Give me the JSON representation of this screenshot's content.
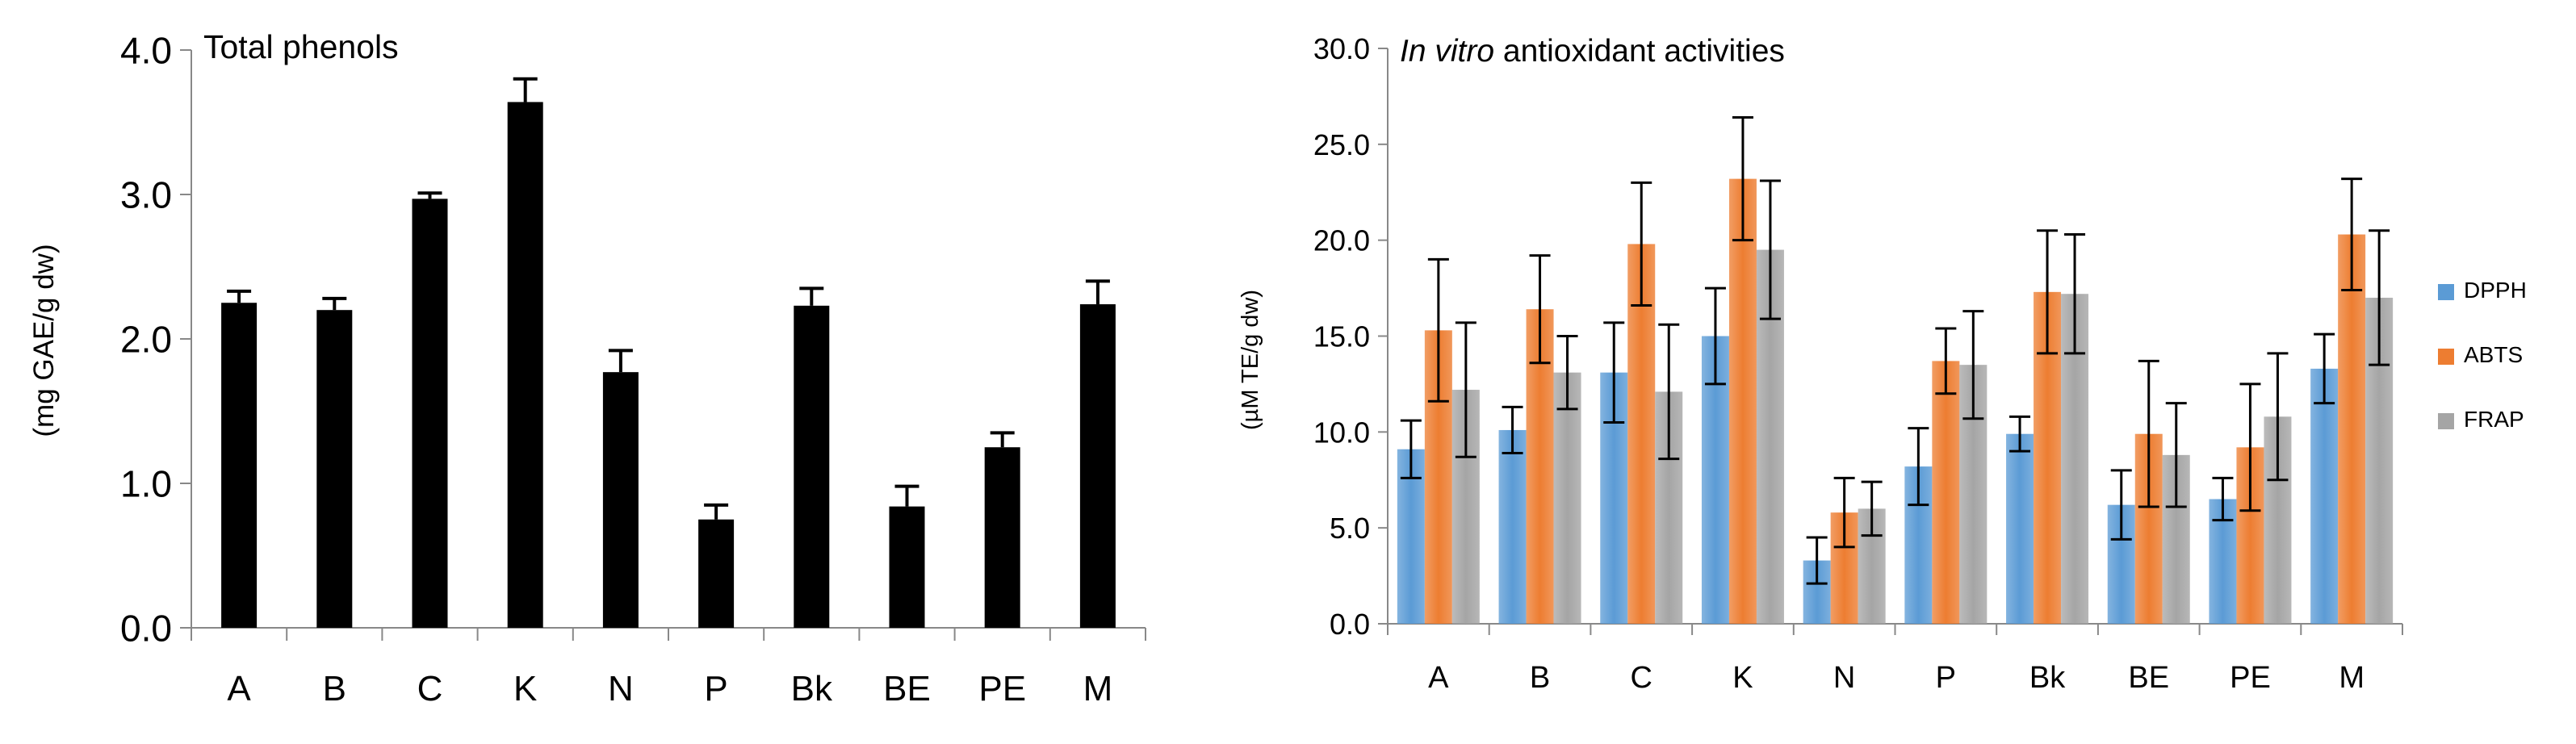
{
  "chart_data": [
    {
      "type": "bar",
      "title": "Total phenols",
      "xlabel": "",
      "ylabel": "(mg GAE/g dw)",
      "ylim": [
        0,
        4
      ],
      "yticks": [
        "0.0",
        "1.0",
        "2.0",
        "3.0",
        "4.0"
      ],
      "categories": [
        "A",
        "B",
        "C",
        "K",
        "N",
        "P",
        "Bk",
        "BE",
        "PE",
        "M"
      ],
      "series": [
        {
          "name": "Total phenols",
          "color": "#000000",
          "values": [
            2.25,
            2.2,
            2.97,
            3.64,
            1.77,
            0.75,
            2.23,
            0.84,
            1.25,
            2.24
          ],
          "errors": [
            0.08,
            0.08,
            0.04,
            0.16,
            0.15,
            0.1,
            0.12,
            0.14,
            0.1,
            0.16
          ]
        }
      ]
    },
    {
      "type": "bar",
      "title_italic": "In vitro",
      "title_rest": " antioxidant activities",
      "xlabel": "",
      "ylabel": "(µM TE/g dw)",
      "ylim": [
        0,
        30
      ],
      "yticks": [
        "0.0",
        "5.0",
        "10.0",
        "15.0",
        "20.0",
        "25.0",
        "30.0"
      ],
      "categories": [
        "A",
        "B",
        "C",
        "K",
        "N",
        "P",
        "Bk",
        "BE",
        "PE",
        "M"
      ],
      "legend_position": "right",
      "series": [
        {
          "name": "DPPH",
          "color": "#5b9bd5",
          "values": [
            9.1,
            10.1,
            13.1,
            15.0,
            3.3,
            8.2,
            9.9,
            6.2,
            6.5,
            13.3
          ],
          "errors": [
            1.5,
            1.2,
            2.6,
            2.5,
            1.2,
            2.0,
            0.9,
            1.8,
            1.1,
            1.8
          ]
        },
        {
          "name": "ABTS",
          "color": "#ed7d31",
          "values": [
            15.3,
            16.4,
            19.8,
            23.2,
            5.8,
            13.7,
            17.3,
            9.9,
            9.2,
            20.3
          ],
          "errors": [
            3.7,
            2.8,
            3.2,
            3.2,
            1.8,
            1.7,
            3.2,
            3.8,
            3.3,
            2.9
          ]
        },
        {
          "name": "FRAP",
          "color": "#a5a5a5",
          "values": [
            12.2,
            13.1,
            12.1,
            19.5,
            6.0,
            13.5,
            17.2,
            8.8,
            10.8,
            17.0
          ],
          "errors": [
            3.5,
            1.9,
            3.5,
            3.6,
            1.4,
            2.8,
            3.1,
            2.7,
            3.3,
            3.5
          ]
        }
      ]
    }
  ]
}
